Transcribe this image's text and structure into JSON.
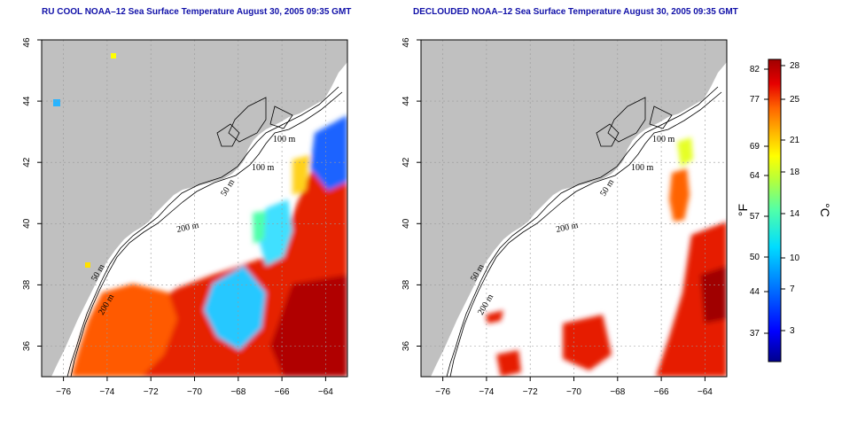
{
  "left_panel": {
    "title": "RU COOL NOAA–12 Sea Surface Temperature August 30, 2005 09:35 GMT"
  },
  "right_panel": {
    "title": "DECLOUDED NOAA–12 Sea Surface Temperature August 30, 2005 09:35 GMT"
  },
  "map_axes": {
    "x_ticks": [
      "−76",
      "−74",
      "−72",
      "−70",
      "−68",
      "−66",
      "−64"
    ],
    "y_ticks": [
      "36",
      "38",
      "40",
      "42",
      "44",
      "46"
    ],
    "x_range": [
      -77.0,
      -63.0
    ],
    "y_range": [
      35.0,
      46.0
    ]
  },
  "contour_labels": [
    "100 m",
    "100 m",
    "50 m",
    "200 m",
    "50 m",
    "200 m"
  ],
  "colorbar": {
    "fahrenheit_ticks": [
      "82",
      "77",
      "69",
      "64",
      "57",
      "50",
      "44",
      "37"
    ],
    "celsius_ticks": [
      "28",
      "25",
      "21",
      "18",
      "14",
      "10",
      "7",
      "3"
    ],
    "fahrenheit_unit": "°F",
    "celsius_unit": "°C",
    "range_celsius": [
      0,
      29
    ]
  },
  "colors": {
    "land": "#c0c0c0",
    "ocean": "#ffffff",
    "title": "#1010a8",
    "scale": [
      "#00008c",
      "#0000ff",
      "#0078ff",
      "#00dcff",
      "#50ffaa",
      "#b4ff3c",
      "#ffff00",
      "#ffb400",
      "#ff6400",
      "#e60000",
      "#a00000"
    ]
  }
}
